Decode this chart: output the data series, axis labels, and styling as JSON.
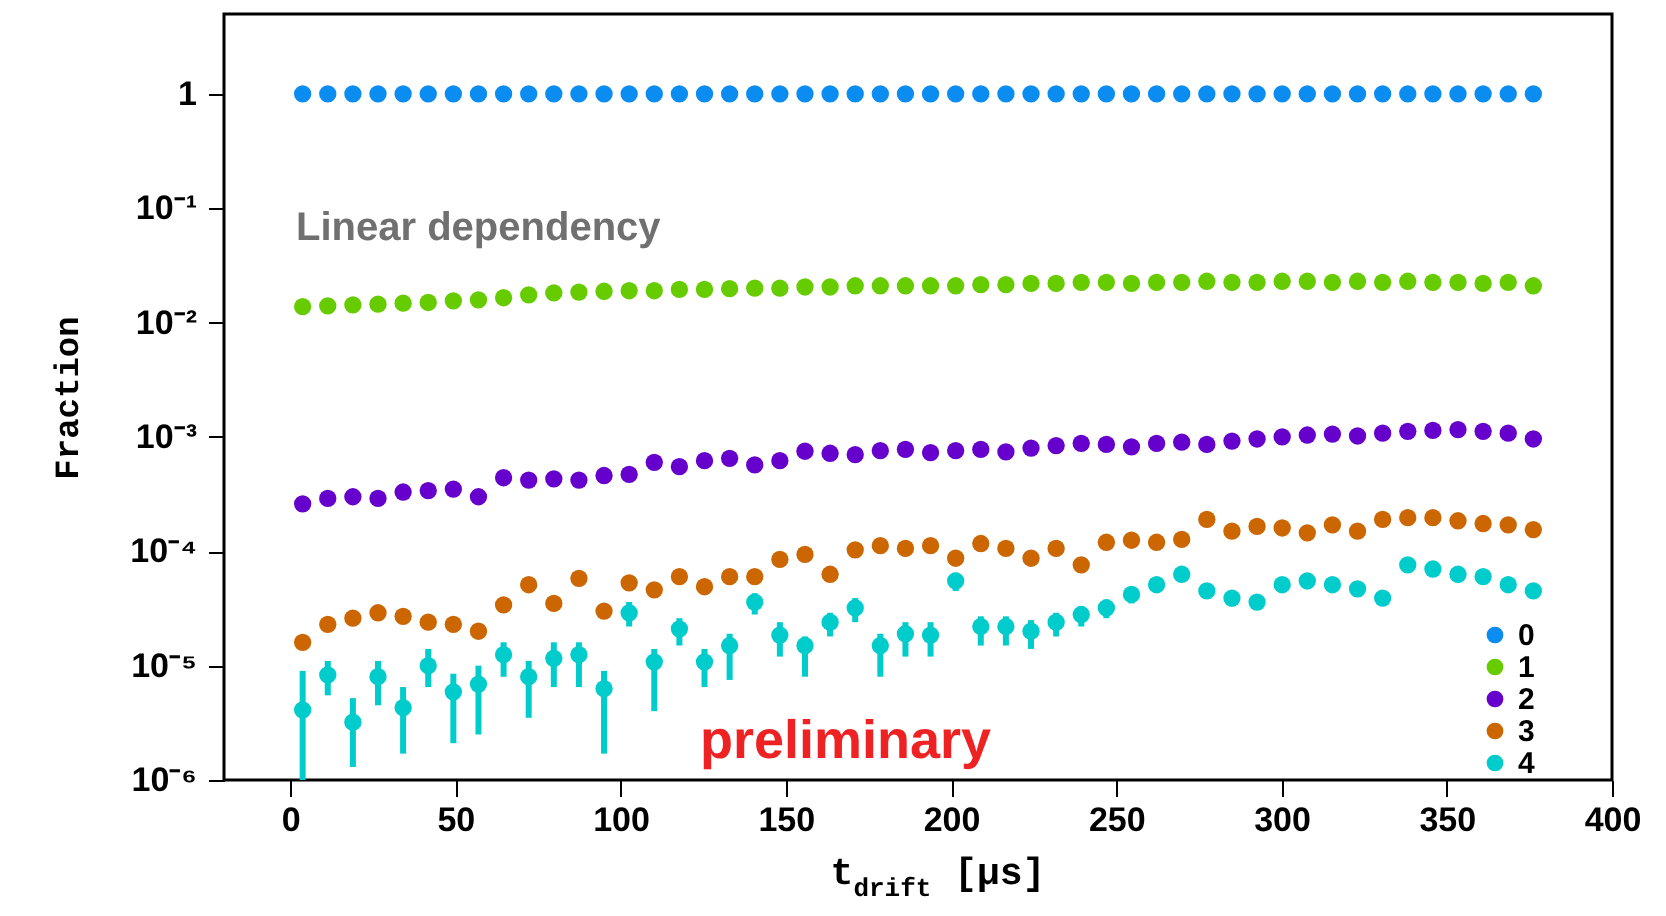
{
  "chart_data": {
    "type": "scatter",
    "xlabel": "t$_{drift}$ [μs]",
    "ylabel": "Fraction",
    "annotations": [
      "Linear dependency",
      "preliminary"
    ],
    "x": [
      3.8,
      11.4,
      19,
      26.6,
      34.2,
      41.8,
      49.4,
      57,
      64.6,
      72.2,
      79.8,
      87.4,
      95,
      102.6,
      110.2,
      117.8,
      125.4,
      133,
      140.6,
      148.2,
      155.8,
      163.4,
      171,
      178.6,
      186.2,
      193.8,
      201.4,
      209,
      216.6,
      224.2,
      231.8,
      239.4,
      247,
      254.6,
      262.2,
      269.8,
      277.4,
      285,
      292.6,
      300.2,
      307.8,
      315.4,
      323,
      330.6,
      338.2,
      345.8,
      353.4,
      361,
      368.6,
      376.2
    ],
    "series": [
      {
        "name": "0",
        "color": "#0a8cf0",
        "values": [
          1,
          1,
          1,
          1,
          1,
          1,
          1,
          1,
          1,
          1,
          1,
          1,
          1,
          1,
          1,
          1,
          1,
          1,
          1,
          1,
          1,
          1,
          1,
          1,
          1,
          1,
          1,
          1,
          1,
          1,
          1,
          1,
          1,
          1,
          1,
          1,
          1,
          1,
          1,
          1,
          1,
          1,
          1,
          1,
          1,
          1,
          1,
          1,
          1,
          1
        ]
      },
      {
        "name": "1",
        "color": "#66cc00",
        "values": [
          0.0138,
          0.014,
          0.0143,
          0.0145,
          0.0148,
          0.015,
          0.0155,
          0.0158,
          0.0165,
          0.0175,
          0.0182,
          0.0185,
          0.0188,
          0.019,
          0.019,
          0.0195,
          0.0195,
          0.0198,
          0.02,
          0.02,
          0.0205,
          0.0205,
          0.021,
          0.021,
          0.021,
          0.021,
          0.021,
          0.0215,
          0.0215,
          0.022,
          0.022,
          0.0225,
          0.0225,
          0.022,
          0.0225,
          0.0225,
          0.023,
          0.0225,
          0.0225,
          0.023,
          0.023,
          0.0225,
          0.023,
          0.0225,
          0.023,
          0.0225,
          0.0225,
          0.022,
          0.0225,
          0.021
        ]
      },
      {
        "name": "2",
        "color": "#6600cc",
        "values": [
          0.00026,
          0.00029,
          0.0003,
          0.00029,
          0.00033,
          0.00034,
          0.00035,
          0.0003,
          0.00044,
          0.00042,
          0.00043,
          0.00042,
          0.00046,
          0.00047,
          0.0006,
          0.00055,
          0.00062,
          0.00065,
          0.00057,
          0.00062,
          0.00075,
          0.00072,
          0.0007,
          0.00076,
          0.00078,
          0.00073,
          0.00076,
          0.00078,
          0.00074,
          0.0008,
          0.00084,
          0.00088,
          0.00086,
          0.00082,
          0.00088,
          0.0009,
          0.00086,
          0.00092,
          0.00096,
          0.001,
          0.00104,
          0.00106,
          0.00102,
          0.00108,
          0.00112,
          0.00114,
          0.00116,
          0.00112,
          0.00108,
          0.00096
        ]
      },
      {
        "name": "3",
        "color": "#cc6600",
        "values": [
          1.6e-05,
          2.3e-05,
          2.6e-05,
          2.9e-05,
          2.7e-05,
          2.4e-05,
          2.3e-05,
          2e-05,
          3.4e-05,
          5.1e-05,
          3.5e-05,
          5.8e-05,
          3e-05,
          5.3e-05,
          4.6e-05,
          6e-05,
          4.9e-05,
          6e-05,
          6e-05,
          8.5e-05,
          9.4e-05,
          6.3e-05,
          0.000103,
          0.000112,
          0.000106,
          0.000112,
          8.7e-05,
          0.000117,
          0.000106,
          8.7e-05,
          0.000106,
          7.6e-05,
          0.00012,
          0.000125,
          0.00012,
          0.000127,
          0.00019,
          0.00015,
          0.000165,
          0.00016,
          0.000145,
          0.00017,
          0.00015,
          0.00019,
          0.000197,
          0.000197,
          0.000185,
          0.000175,
          0.00017,
          0.000155
        ]
      },
      {
        "name": "4",
        "color": "#00cccc",
        "values": [
          4.1e-06,
          8.3e-06,
          3.2e-06,
          8e-06,
          4.3e-06,
          1e-05,
          5.9e-06,
          6.9e-06,
          1.25e-05,
          8e-06,
          1.16e-05,
          1.25e-05,
          6.3e-06,
          2.9e-05,
          1.08e-05,
          2.1e-05,
          1.08e-05,
          1.5e-05,
          3.6e-05,
          1.85e-05,
          1.5e-05,
          2.4e-05,
          3.2e-05,
          1.5e-05,
          1.9e-05,
          1.85e-05,
          5.5e-05,
          2.2e-05,
          2.2e-05,
          2e-05,
          2.4e-05,
          2.8e-05,
          3.2e-05,
          4.2e-05,
          5.1e-05,
          6.3e-05,
          4.5e-05,
          3.9e-05,
          3.6e-05,
          5.1e-05,
          5.5e-05,
          5.1e-05,
          4.7e-05,
          3.9e-05,
          7.6e-05,
          7e-05,
          6.3e-05,
          6e-05,
          5.1e-05,
          4.5e-05
        ],
        "errors": [
          [
            1e-06,
            9e-06
          ],
          [
            5.5e-06,
            1.1e-05
          ],
          [
            1.3e-06,
            5.2e-06
          ],
          [
            4.5e-06,
            1.1e-05
          ],
          [
            1.7e-06,
            6.5e-06
          ],
          [
            6.5e-06,
            1.4e-05
          ],
          [
            2.1e-06,
            8.5e-06
          ],
          [
            2.5e-06,
            1e-05
          ],
          [
            8e-06,
            1.6e-05
          ],
          [
            3.5e-06,
            1.1e-05
          ],
          [
            6.5e-06,
            1.6e-05
          ],
          [
            6.5e-06,
            1.6e-05
          ],
          [
            1.7e-06,
            9e-06
          ],
          [
            2.2e-05,
            3.6e-05
          ],
          [
            4e-06,
            1.4e-05
          ],
          [
            1.5e-05,
            2.6e-05
          ],
          [
            6.5e-06,
            1.4e-05
          ],
          [
            7.5e-06,
            1.9e-05
          ],
          [
            2.8e-05,
            4.3e-05
          ],
          [
            1.2e-05,
            2.4e-05
          ],
          [
            8e-06,
            1.8e-05
          ],
          [
            1.8e-05,
            2.9e-05
          ],
          [
            2.4e-05,
            3.9e-05
          ],
          [
            8e-06,
            1.9e-05
          ],
          [
            1.2e-05,
            2.4e-05
          ],
          [
            1.2e-05,
            2.4e-05
          ],
          [
            4.5e-05,
            6.5e-05
          ],
          [
            1.5e-05,
            2.7e-05
          ],
          [
            1.5e-05,
            2.7e-05
          ],
          [
            1.4e-05,
            2.5e-05
          ],
          [
            1.8e-05,
            2.9e-05
          ],
          [
            2.2e-05,
            3.3e-05
          ],
          [
            2.6e-05,
            3.8e-05
          ],
          [
            3.5e-05,
            4.8e-05
          ],
          [
            4.4e-05,
            5.8e-05
          ],
          [
            5.5e-05,
            7e-05
          ],
          [
            3.9e-05,
            5.1e-05
          ],
          [
            3.3e-05,
            4.4e-05
          ],
          [
            3.1e-05,
            4.1e-05
          ],
          [
            4.5e-05,
            5.7e-05
          ],
          [
            4.9e-05,
            6.1e-05
          ],
          [
            4.5e-05,
            5.7e-05
          ],
          [
            4.1e-05,
            5.3e-05
          ],
          [
            3.4e-05,
            4.4e-05
          ],
          [
            6.9e-05,
            8.3e-05
          ],
          [
            6.4e-05,
            7.6e-05
          ],
          [
            5.8e-05,
            6.8e-05
          ],
          [
            5.5e-05,
            6.5e-05
          ],
          [
            4.6e-05,
            5.6e-05
          ],
          [
            4e-05,
            5e-05
          ]
        ]
      }
    ],
    "xlim": [
      -20,
      400
    ],
    "xticks": [
      0,
      50,
      100,
      150,
      200,
      250,
      300,
      350,
      400
    ],
    "ylim": [
      1e-06,
      5
    ],
    "yticks": [
      {
        "value": 1e-06,
        "label": "10⁻⁶"
      },
      {
        "value": 1e-05,
        "label": "10⁻⁵"
      },
      {
        "value": 0.0001,
        "label": "10⁻⁴"
      },
      {
        "value": 0.001,
        "label": "10⁻³"
      },
      {
        "value": 0.01,
        "label": "10⁻²"
      },
      {
        "value": 0.1,
        "label": "10⁻¹"
      },
      1
    ],
    "log": true,
    "marker": "circle",
    "legend": "bottom right"
  }
}
